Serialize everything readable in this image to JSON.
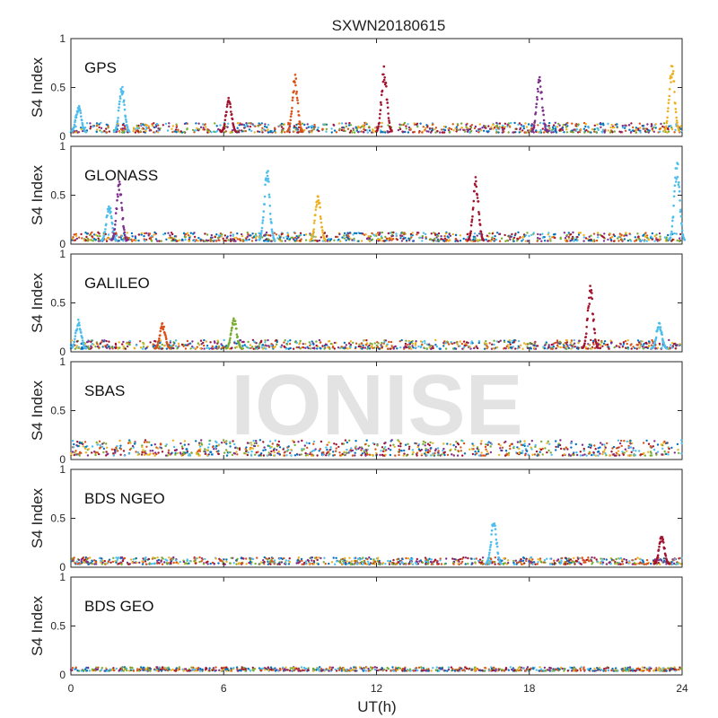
{
  "chart_data": {
    "type": "scatter",
    "title": "SXWN20180615",
    "xlabel": "UT(h)",
    "ylabel": "S4 Index",
    "xlim": [
      0,
      24
    ],
    "ylim": [
      0,
      1
    ],
    "xticks": [
      "0",
      "6",
      "12",
      "18",
      "24"
    ],
    "yticks": [
      "0",
      "0.5",
      "1"
    ],
    "grid": false,
    "watermark": "IONISE",
    "colors": [
      "#0072bd",
      "#d95319",
      "#edb120",
      "#7e2f8e",
      "#77ac30",
      "#4dbeee",
      "#a2142f"
    ],
    "panels": [
      {
        "label": "GPS",
        "baseline": [
          0.04,
          0.14
        ],
        "spikes": [
          {
            "x": 0.3,
            "peak": 0.32,
            "color": 5
          },
          {
            "x": 2.0,
            "peak": 0.52,
            "color": 5
          },
          {
            "x": 6.2,
            "peak": 0.4,
            "color": 6
          },
          {
            "x": 8.8,
            "peak": 0.64,
            "color": 1
          },
          {
            "x": 12.3,
            "peak": 0.72,
            "color": 6
          },
          {
            "x": 18.4,
            "peak": 0.64,
            "color": 3
          },
          {
            "x": 23.6,
            "peak": 0.77,
            "color": 2
          }
        ]
      },
      {
        "label": "GLONASS",
        "baseline": [
          0.03,
          0.12
        ],
        "spikes": [
          {
            "x": 1.5,
            "peak": 0.42,
            "color": 5
          },
          {
            "x": 1.9,
            "peak": 0.65,
            "color": 3
          },
          {
            "x": 7.7,
            "peak": 0.8,
            "color": 5
          },
          {
            "x": 9.7,
            "peak": 0.52,
            "color": 2
          },
          {
            "x": 15.9,
            "peak": 0.7,
            "color": 6
          },
          {
            "x": 23.8,
            "peak": 0.88,
            "color": 5
          }
        ]
      },
      {
        "label": "GALILEO",
        "baseline": [
          0.03,
          0.12
        ],
        "spikes": [
          {
            "x": 0.3,
            "peak": 0.33,
            "color": 5
          },
          {
            "x": 3.6,
            "peak": 0.3,
            "color": 1
          },
          {
            "x": 6.4,
            "peak": 0.36,
            "color": 4
          },
          {
            "x": 20.4,
            "peak": 0.68,
            "color": 6
          },
          {
            "x": 23.1,
            "peak": 0.31,
            "color": 5
          }
        ]
      },
      {
        "label": "SBAS",
        "baseline": [
          0.04,
          0.2
        ],
        "spikes": []
      },
      {
        "label": "BDS NGEO",
        "baseline": [
          0.03,
          0.1
        ],
        "spikes": [
          {
            "x": 16.6,
            "peak": 0.5,
            "color": 5
          },
          {
            "x": 23.2,
            "peak": 0.33,
            "color": 6
          }
        ]
      },
      {
        "label": "BDS GEO",
        "baseline": [
          0.04,
          0.08
        ],
        "spikes": []
      }
    ]
  }
}
